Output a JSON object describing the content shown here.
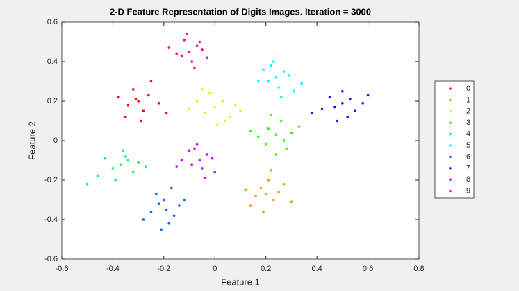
{
  "chart_data": {
    "type": "scatter",
    "title": "2-D Feature Representation of Digits Images. Iteration = 3000",
    "xlabel": "Feature 1",
    "ylabel": "Feature 2",
    "xlim": [
      -0.6,
      0.8
    ],
    "ylim": [
      -0.6,
      0.6
    ],
    "xticks": [
      -0.6,
      -0.4,
      -0.2,
      0,
      0.2,
      0.4,
      0.6,
      0.8
    ],
    "yticks": [
      -0.6,
      -0.4,
      -0.2,
      0,
      0.2,
      0.4,
      0.6
    ],
    "legend": "right",
    "series": [
      {
        "name": "0",
        "color": "#ff0000",
        "x": [
          -0.3,
          -0.26,
          -0.34,
          -0.28,
          -0.32,
          -0.22,
          -0.38,
          -0.29,
          -0.25,
          -0.35,
          -0.31,
          -0.19
        ],
        "y": [
          0.2,
          0.23,
          0.18,
          0.15,
          0.26,
          0.19,
          0.22,
          0.1,
          0.3,
          0.12,
          0.21,
          0.14
        ]
      },
      {
        "name": "1",
        "color": "#ff9900",
        "x": [
          0.2,
          0.18,
          0.23,
          0.16,
          0.21,
          0.25,
          0.14,
          0.19,
          0.27,
          0.22,
          0.12,
          0.3
        ],
        "y": [
          -0.27,
          -0.24,
          -0.3,
          -0.28,
          -0.2,
          -0.26,
          -0.33,
          -0.36,
          -0.22,
          -0.15,
          -0.25,
          -0.31
        ]
      },
      {
        "name": "2",
        "color": "#ccff00",
        "x": [
          0.0,
          0.03,
          -0.04,
          0.06,
          -0.02,
          0.08,
          -0.07,
          0.01,
          0.1,
          -0.05,
          0.04,
          -0.1
        ],
        "y": [
          0.17,
          0.2,
          0.14,
          0.12,
          0.24,
          0.18,
          0.2,
          0.08,
          0.15,
          0.26,
          0.1,
          0.16
        ]
      },
      {
        "name": "3",
        "color": "#33ff00",
        "x": [
          0.24,
          0.21,
          0.27,
          0.2,
          0.26,
          0.3,
          0.17,
          0.24,
          0.33,
          0.22,
          0.28,
          0.14
        ],
        "y": [
          0.03,
          0.06,
          0.0,
          -0.02,
          0.1,
          0.04,
          0.02,
          -0.07,
          0.07,
          0.13,
          -0.04,
          0.05
        ]
      },
      {
        "name": "4",
        "color": "#00ff66",
        "x": [
          -0.37,
          -0.34,
          -0.4,
          -0.32,
          -0.43,
          -0.36,
          -0.3,
          -0.46,
          -0.39,
          -0.27,
          -0.5,
          -0.35
        ],
        "y": [
          -0.12,
          -0.1,
          -0.14,
          -0.16,
          -0.09,
          -0.05,
          -0.11,
          -0.18,
          -0.2,
          -0.13,
          -0.22,
          -0.08
        ]
      },
      {
        "name": "5",
        "color": "#00ffff",
        "x": [
          0.24,
          0.27,
          0.21,
          0.25,
          0.29,
          0.19,
          0.23,
          0.31,
          0.26,
          0.17,
          0.22,
          0.34
        ],
        "y": [
          0.32,
          0.35,
          0.3,
          0.27,
          0.33,
          0.36,
          0.4,
          0.25,
          0.22,
          0.3,
          0.38,
          0.29
        ]
      },
      {
        "name": "6",
        "color": "#0066ff",
        "x": [
          -0.19,
          -0.22,
          -0.16,
          -0.2,
          -0.25,
          -0.14,
          -0.18,
          -0.23,
          -0.12,
          -0.28,
          -0.21,
          -0.17
        ],
        "y": [
          -0.35,
          -0.32,
          -0.38,
          -0.3,
          -0.36,
          -0.33,
          -0.42,
          -0.27,
          -0.3,
          -0.4,
          -0.45,
          -0.24
        ]
      },
      {
        "name": "7",
        "color": "#3300ff",
        "x": [
          0.5,
          0.53,
          0.47,
          0.55,
          0.45,
          0.5,
          0.58,
          0.42,
          0.52,
          0.6,
          0.48,
          0.38
        ],
        "y": [
          0.19,
          0.21,
          0.17,
          0.15,
          0.22,
          0.25,
          0.19,
          0.16,
          0.12,
          0.23,
          0.1,
          0.14
        ]
      },
      {
        "name": "8",
        "color": "#cc00ff",
        "x": [
          -0.06,
          -0.03,
          -0.09,
          -0.05,
          -0.1,
          -0.01,
          -0.07,
          -0.13,
          0.0,
          -0.04,
          -0.08,
          -0.15
        ],
        "y": [
          -0.1,
          -0.07,
          -0.12,
          -0.14,
          -0.05,
          -0.09,
          -0.02,
          -0.1,
          -0.16,
          -0.19,
          -0.04,
          -0.13
        ]
      },
      {
        "name": "9",
        "color": "#ff0099",
        "x": [
          -0.1,
          -0.07,
          -0.13,
          -0.09,
          -0.05,
          -0.12,
          -0.15,
          -0.08,
          -0.03,
          -0.11,
          -0.18,
          -0.06
        ],
        "y": [
          0.45,
          0.48,
          0.43,
          0.4,
          0.46,
          0.51,
          0.44,
          0.37,
          0.42,
          0.54,
          0.47,
          0.5
        ]
      }
    ]
  }
}
